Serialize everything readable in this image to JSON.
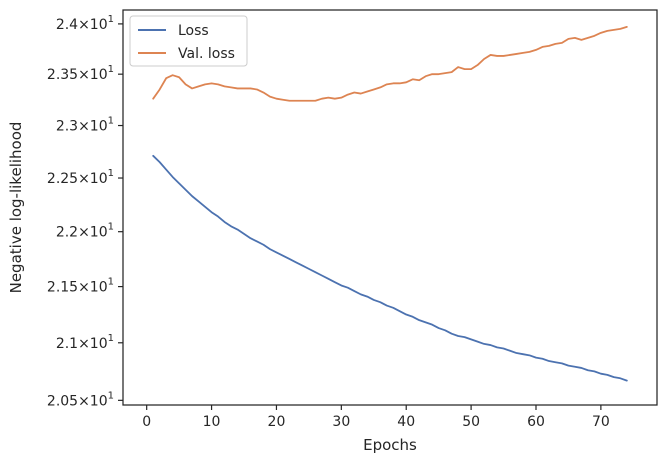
{
  "chart_data": {
    "type": "line",
    "xlabel": "Epochs",
    "ylabel": "Negative log-likelihood",
    "xlim": [
      -3.65,
      78.65
    ],
    "ylim": [
      20.46,
      24.14
    ],
    "y_scale": "log",
    "x_ticks": [
      0,
      10,
      20,
      30,
      40,
      50,
      60,
      70
    ],
    "y_ticks": [
      {
        "value": 20.5,
        "mantissa": "2.05"
      },
      {
        "value": 21.0,
        "mantissa": "2.1"
      },
      {
        "value": 21.5,
        "mantissa": "2.15"
      },
      {
        "value": 22.0,
        "mantissa": "2.2"
      },
      {
        "value": 22.5,
        "mantissa": "2.25"
      },
      {
        "value": 23.0,
        "mantissa": "2.3"
      },
      {
        "value": 23.5,
        "mantissa": "2.35"
      },
      {
        "value": 24.0,
        "mantissa": "2.4"
      }
    ],
    "y_tick_suffix": "×10",
    "y_tick_exponent": "1",
    "grid": false,
    "legend": "top-left",
    "series": [
      {
        "name": "Loss",
        "color": "#4c72b0",
        "x": [
          1,
          2,
          3,
          4,
          5,
          6,
          7,
          8,
          9,
          10,
          11,
          12,
          13,
          14,
          15,
          16,
          17,
          18,
          19,
          20,
          21,
          22,
          23,
          24,
          25,
          26,
          27,
          28,
          29,
          30,
          31,
          32,
          33,
          34,
          35,
          36,
          37,
          38,
          39,
          40,
          41,
          42,
          43,
          44,
          45,
          46,
          47,
          48,
          49,
          50,
          51,
          52,
          53,
          54,
          55,
          56,
          57,
          58,
          59,
          60,
          61,
          62,
          63,
          64,
          65,
          66,
          67,
          68,
          69,
          70,
          71,
          72,
          73,
          74
        ],
        "values": [
          22.71,
          22.65,
          22.58,
          22.51,
          22.45,
          22.39,
          22.33,
          22.28,
          22.23,
          22.18,
          22.14,
          22.09,
          22.05,
          22.02,
          21.98,
          21.94,
          21.91,
          21.88,
          21.84,
          21.81,
          21.78,
          21.75,
          21.72,
          21.69,
          21.66,
          21.63,
          21.6,
          21.57,
          21.54,
          21.51,
          21.49,
          21.46,
          21.43,
          21.41,
          21.38,
          21.36,
          21.33,
          21.31,
          21.28,
          21.25,
          21.23,
          21.2,
          21.18,
          21.16,
          21.13,
          21.11,
          21.08,
          21.06,
          21.05,
          21.03,
          21.01,
          20.99,
          20.98,
          20.96,
          20.95,
          20.93,
          20.91,
          20.9,
          20.89,
          20.87,
          20.86,
          20.84,
          20.83,
          20.82,
          20.8,
          20.79,
          20.78,
          20.76,
          20.75,
          20.73,
          20.72,
          20.7,
          20.69,
          20.67
        ]
      },
      {
        "name": "Val. loss",
        "color": "#dd8452",
        "x": [
          1,
          2,
          3,
          4,
          5,
          6,
          7,
          8,
          9,
          10,
          11,
          12,
          13,
          14,
          15,
          16,
          17,
          18,
          19,
          20,
          21,
          22,
          23,
          24,
          25,
          26,
          27,
          28,
          29,
          30,
          31,
          32,
          33,
          34,
          35,
          36,
          37,
          38,
          39,
          40,
          41,
          42,
          43,
          44,
          45,
          46,
          47,
          48,
          49,
          50,
          51,
          52,
          53,
          54,
          55,
          56,
          57,
          58,
          59,
          60,
          61,
          62,
          63,
          64,
          65,
          66,
          67,
          68,
          69,
          70,
          71,
          72,
          73,
          74
        ],
        "values": [
          23.26,
          23.35,
          23.46,
          23.49,
          23.47,
          23.4,
          23.36,
          23.38,
          23.4,
          23.41,
          23.4,
          23.38,
          23.37,
          23.36,
          23.36,
          23.36,
          23.35,
          23.32,
          23.28,
          23.26,
          23.25,
          23.24,
          23.24,
          23.24,
          23.24,
          23.24,
          23.26,
          23.27,
          23.26,
          23.27,
          23.3,
          23.32,
          23.31,
          23.33,
          23.35,
          23.37,
          23.4,
          23.41,
          23.41,
          23.42,
          23.45,
          23.44,
          23.48,
          23.5,
          23.5,
          23.51,
          23.52,
          23.57,
          23.55,
          23.55,
          23.59,
          23.65,
          23.69,
          23.68,
          23.68,
          23.69,
          23.7,
          23.71,
          23.72,
          23.74,
          23.77,
          23.78,
          23.8,
          23.81,
          23.85,
          23.86,
          23.84,
          23.86,
          23.88,
          23.91,
          23.93,
          23.94,
          23.95,
          23.97
        ]
      }
    ]
  }
}
